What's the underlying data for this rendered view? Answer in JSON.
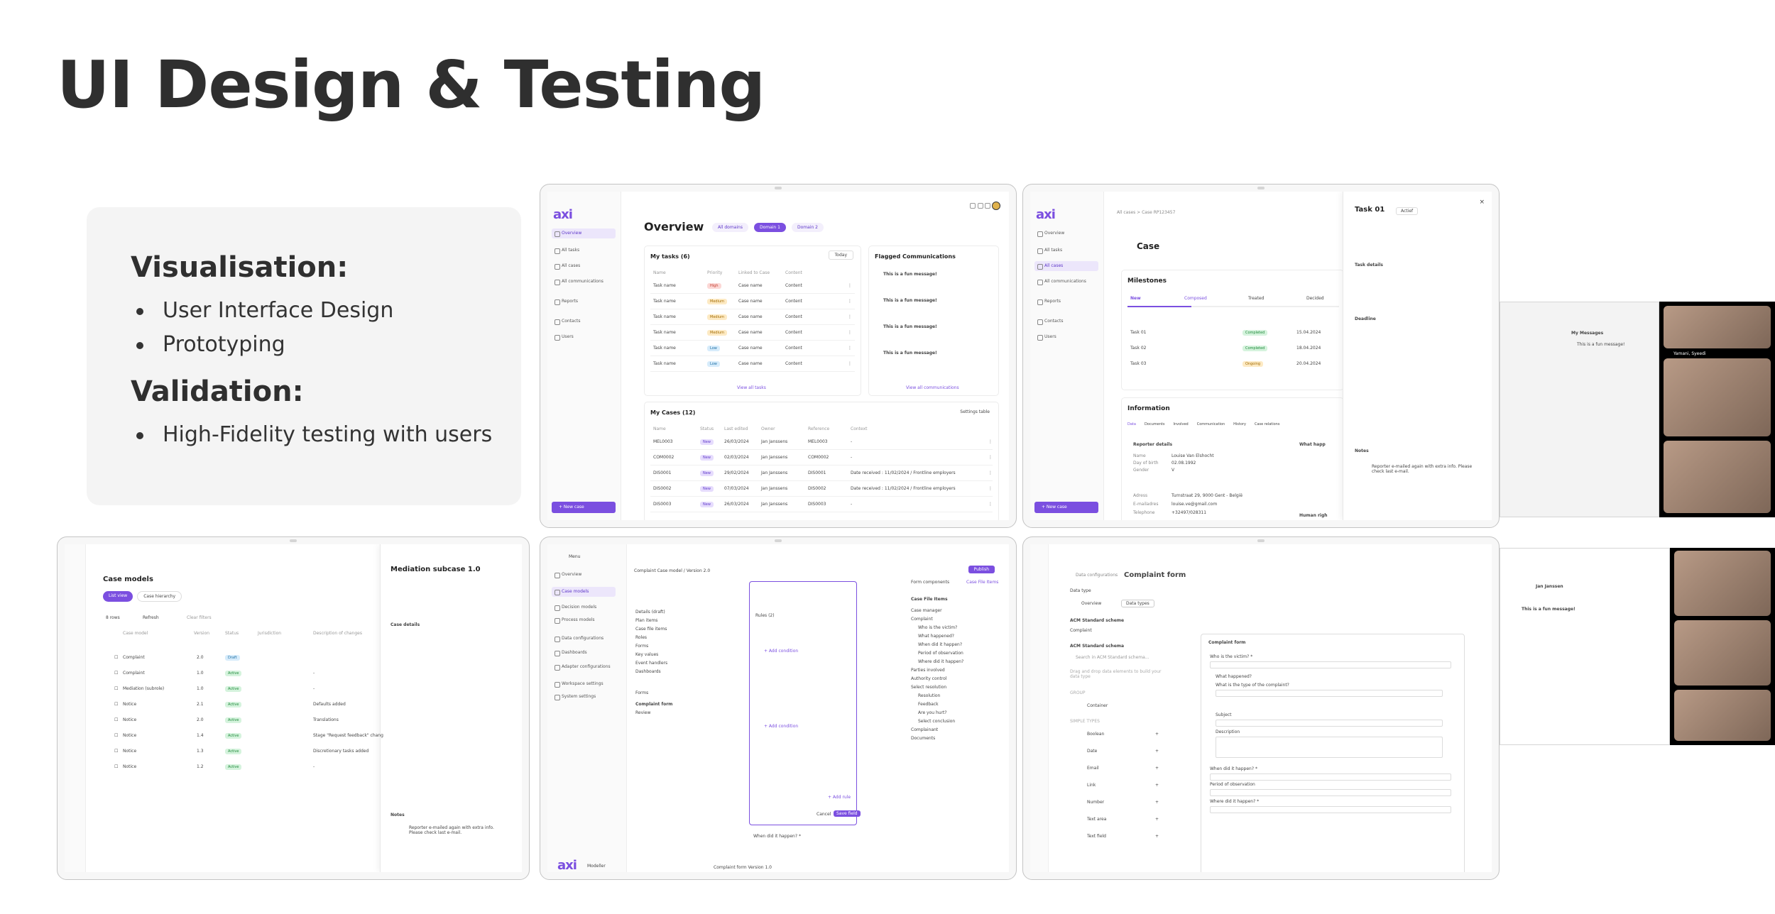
{
  "page": {
    "title": "UI Design & Testing"
  },
  "info": {
    "sections": [
      {
        "heading": "Visualisation:",
        "items": [
          "User Interface Design",
          "Prototyping"
        ]
      },
      {
        "heading": "Validation:",
        "items": [
          "High-Fidelity testing with users"
        ]
      }
    ]
  },
  "overview_screen": {
    "logo": "axi",
    "nav": [
      "Overview",
      "All tasks",
      "All cases",
      "All communications",
      "Reports",
      "Contacts",
      "Users"
    ],
    "new_case": "+ New case",
    "title": "Overview",
    "tabs": [
      "All domains",
      "Domain 1",
      "Domain 2"
    ],
    "my_tasks": {
      "title": "My tasks (6)",
      "filter": "Today",
      "headers": [
        "Name",
        "Priority",
        "Linked to Case",
        "Content"
      ],
      "rows": [
        {
          "name": "Task name",
          "priority": "High",
          "case": "Case name",
          "content": "Content"
        },
        {
          "name": "Task name",
          "priority": "Medium",
          "case": "Case name",
          "content": "Content"
        },
        {
          "name": "Task name",
          "priority": "Medium",
          "case": "Case name",
          "content": "Content"
        },
        {
          "name": "Task name",
          "priority": "Medium",
          "case": "Case name",
          "content": "Content"
        },
        {
          "name": "Task name",
          "priority": "Low",
          "case": "Case name",
          "content": "Content"
        },
        {
          "name": "Task name",
          "priority": "Low",
          "case": "Case name",
          "content": "Content"
        }
      ],
      "view_all": "View all tasks"
    },
    "flagged": {
      "title": "Flagged Communications",
      "items": [
        "This is a fun message!",
        "This is a fun message!",
        "This is a fun message!",
        "This is a fun message!"
      ],
      "view_all": "View all communications"
    },
    "my_cases": {
      "title": "My Cases (12)",
      "settings": "Settings table",
      "headers": [
        "Name",
        "Status",
        "Last edited",
        "Owner",
        "Reference",
        "Context"
      ],
      "rows": [
        {
          "name": "MEL0003",
          "status": "New",
          "date": "26/03/2024",
          "owner": "Jan Janssens",
          "ref": "MEL0003",
          "ctx": "-"
        },
        {
          "name": "COM0002",
          "status": "New",
          "date": "02/03/2024",
          "owner": "Jan Janssens",
          "ref": "COM0002",
          "ctx": "-"
        },
        {
          "name": "DIS0001",
          "status": "New",
          "date": "29/02/2024",
          "owner": "Jan Janssens",
          "ref": "DIS0001",
          "ctx": "Date received : 11/02/2024 / Frontline employers"
        },
        {
          "name": "DIS0002",
          "status": "New",
          "date": "07/03/2024",
          "owner": "Jan Janssens",
          "ref": "DIS0002",
          "ctx": "Date received : 11/02/2024 / Frontline employers"
        },
        {
          "name": "DIS0003",
          "status": "New",
          "date": "26/03/2024",
          "owner": "Jan Janssens",
          "ref": "DIS0003",
          "ctx": "-"
        }
      ]
    }
  },
  "case_screen": {
    "breadcrumb": "All cases  >  Case RP123457",
    "title": "Case",
    "milestones": "Milestones",
    "steps": [
      "New",
      "Composed",
      "Treated",
      "Decided"
    ],
    "tasks": [
      {
        "name": "Task 01",
        "state": "Completed",
        "date": "15.04.2024"
      },
      {
        "name": "Task 02",
        "state": "Completed",
        "date": "18.04.2024"
      },
      {
        "name": "Task 03",
        "state": "Ongoing",
        "date": "20.04.2024"
      }
    ],
    "information": "Information",
    "info_tabs": [
      "Data",
      "Documents",
      "Involved",
      "Communication",
      "History",
      "Case relations"
    ],
    "reporter": "Reporter details",
    "reporter_fields": [
      {
        "label": "Name",
        "value": "Louise Van Elshocht"
      },
      {
        "label": "Day of birth",
        "value": "02.08.1992"
      },
      {
        "label": "Gender",
        "value": "V"
      },
      {
        "label": "Adress",
        "value": "Turnstraat 29, 9000 Gent - België"
      },
      {
        "label": "E-mailadres",
        "value": "louise.ve@gmail.com"
      },
      {
        "label": "Telephone",
        "value": "+32497/028311"
      }
    ],
    "what_happened": "What happ",
    "human_rights": "Human righ",
    "panel": {
      "title": "Task 01",
      "status": "Actief",
      "task_details": "Task details",
      "deadline": "Deadline",
      "notes": "Notes",
      "note_text": "Reporter e-mailed again with extra info. Please check last e-mail."
    }
  },
  "models_screen": {
    "title": "Case models",
    "tabs": [
      "List view",
      "Case hierarchy"
    ],
    "count": "8 rows",
    "refresh": "Refresh",
    "clear": "Clear filters",
    "headers": [
      "Case model",
      "Version",
      "Status",
      "Jurisdiction",
      "Description of changes"
    ],
    "rows": [
      {
        "name": "Complaint",
        "ver": "2.0",
        "status": "Draft",
        "desc": ""
      },
      {
        "name": "Complaint",
        "ver": "1.0",
        "status": "Active",
        "desc": "-"
      },
      {
        "name": "Mediation (subrole)",
        "ver": "1.0",
        "status": "Active",
        "desc": "-"
      },
      {
        "name": "Notice",
        "ver": "2.1",
        "status": "Active",
        "desc": "Defaults added"
      },
      {
        "name": "Notice",
        "ver": "2.0",
        "status": "Active",
        "desc": "Translations"
      },
      {
        "name": "Notice",
        "ver": "1.4",
        "status": "Active",
        "desc": "Stage \"Request feedback\" chang"
      },
      {
        "name": "Notice",
        "ver": "1.3",
        "status": "Active",
        "desc": "Discretionary tasks added"
      },
      {
        "name": "Notice",
        "ver": "1.2",
        "status": "Active",
        "desc": "-"
      }
    ],
    "panel": {
      "title": "Mediation subcase 1.0",
      "case_details": "Case details",
      "notes": "Notes",
      "note_text": "Reporter e-mailed again with extra info. Please check last e-mail."
    }
  },
  "builder_screen": {
    "menu": "Menu",
    "nav": [
      "Overview",
      "Case models",
      "Decision models",
      "Process models",
      "Data configurations",
      "Dashboards",
      "Adapter configurations",
      "Workspace settings",
      "System settings"
    ],
    "breadcrumb": "Complaint  Case model / Version 2.0",
    "publish": "Publish",
    "tree": [
      "Details (draft)",
      "Plan items",
      "Case file items",
      "Roles",
      "Forms",
      "Key values",
      "Event handlers",
      "Dashboards"
    ],
    "forms_label": "Forms",
    "forms": [
      "Complaint form",
      "Review"
    ],
    "rules": "Rules (2)",
    "add_condition": "+ Add condition",
    "add_rule": "+ Add rule",
    "cancel": "Cancel",
    "save": "Save field",
    "when": "When did it happen? *",
    "right_tabs": [
      "Form components",
      "Case File Items"
    ],
    "cfi_title": "Case File Items",
    "cfi": [
      "Case manager",
      "Complaint",
      "Who is the victim?",
      "What happened?",
      "When did it happen?",
      "Period of observation",
      "Where did it happen?",
      "Parties involved",
      "Authority control",
      "Select resolution",
      "Resolution",
      "Feedback",
      "Are you hurt?",
      "Select conclusion",
      "Complainant",
      "Documents"
    ],
    "footer": "Complaint form  Version 1.0",
    "logo": "axi",
    "logo_sub": "Modeller"
  },
  "form_screen": {
    "breadcrumb_a": "Data configurations",
    "title": "Complaint form",
    "data_type": "Data type",
    "tabs": [
      "Overview",
      "Data types"
    ],
    "scheme": "ACM Standard scheme",
    "scheme_value": "Complaint",
    "schema": "ACM Standard schema",
    "search": "Search in ACM Standard schema...",
    "hint": "Drag and drop data elements to build your data type",
    "group": "GROUP",
    "container": "Container",
    "simple_types": "SIMPLE TYPES",
    "types": [
      "Boolean",
      "Date",
      "Email",
      "Link",
      "Number",
      "Text area",
      "Text field"
    ],
    "form_title": "Complaint form",
    "questions": [
      "Who is the victim? *",
      "What happened?",
      "What is the type of the complaint?",
      "Subject",
      "Description",
      "When did it happen? *",
      "Period of observation",
      "Where did it happen? *"
    ]
  },
  "call": {
    "messages_title": "My Messages",
    "message": "This is a fun message!",
    "participant": "Yamani, Syeedi",
    "sender": "Jan Janssen"
  }
}
